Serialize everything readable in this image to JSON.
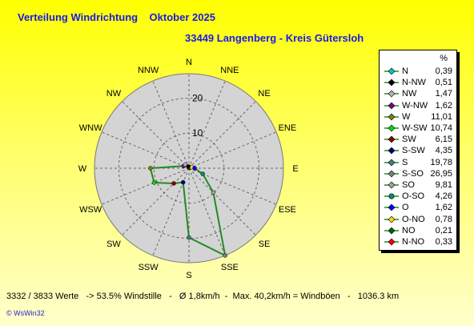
{
  "header": {
    "title": "Verteilung Windrichtung    Oktober 2025",
    "subtitle": "33449 Langenberg - Kreis Gütersloh"
  },
  "chart_data": {
    "type": "radar",
    "directions": [
      "N",
      "NNE",
      "NE",
      "ENE",
      "E",
      "ESE",
      "SE",
      "SSE",
      "S",
      "SSW",
      "SW",
      "WSW",
      "W",
      "WNW",
      "NW",
      "NNW"
    ],
    "values": [
      0.39,
      0.33,
      0.21,
      0.78,
      1.62,
      4.26,
      9.81,
      26.95,
      19.78,
      4.35,
      6.15,
      10.74,
      11.01,
      1.62,
      1.47,
      0.51
    ],
    "r_ticks": [
      "10",
      "20"
    ],
    "r_max": 26.95,
    "grid": true,
    "line_color": "#228b22",
    "ring_fill": "#d4d4d4"
  },
  "legend": {
    "unit": "%",
    "items": [
      {
        "dir": "N",
        "value": "0,39",
        "color": "#00c8c8",
        "marker": "diamond"
      },
      {
        "dir": "N-NW",
        "value": "0,51",
        "color": "#000000",
        "marker": "diamond"
      },
      {
        "dir": "NW",
        "value": "1,47",
        "color": "#b4b4b4",
        "marker": "diamond"
      },
      {
        "dir": "W-NW",
        "value": "1,62",
        "color": "#800080",
        "marker": "diamond"
      },
      {
        "dir": "W",
        "value": "11,01",
        "color": "#808000",
        "marker": "diamond"
      },
      {
        "dir": "W-SW",
        "value": "10,74",
        "color": "#00e000",
        "marker": "diamond"
      },
      {
        "dir": "SW",
        "value": "6,15",
        "color": "#8b0000",
        "marker": "diamond"
      },
      {
        "dir": "S-SW",
        "value": "4,35",
        "color": "#000080",
        "marker": "diamond"
      },
      {
        "dir": "S",
        "value": "19,78",
        "color": "#408080",
        "marker": "diamond"
      },
      {
        "dir": "S-SO",
        "value": "26,95",
        "color": "#808080",
        "marker": "diamond"
      },
      {
        "dir": "SO",
        "value": "9,81",
        "color": "#a0a0a0",
        "marker": "diamond"
      },
      {
        "dir": "O-SO",
        "value": "4,26",
        "color": "#009060",
        "marker": "circle"
      },
      {
        "dir": "O",
        "value": "1,62",
        "color": "#0000ff",
        "marker": "diamond"
      },
      {
        "dir": "O-NO",
        "value": "0,78",
        "color": "#ffd700",
        "marker": "diamond"
      },
      {
        "dir": "NO",
        "value": "0,21",
        "color": "#006400",
        "marker": "diamond"
      },
      {
        "dir": "N-NO",
        "value": "0,33",
        "color": "#ff0000",
        "marker": "diamond"
      }
    ]
  },
  "footer": {
    "stats": "3332 / 3833 Werte   -> 53.5% Windstille   -   Ø 1,8km/h  -  Max. 40,2km/h = Windböen   -   1036.3 km",
    "credit": "© WsWin32"
  }
}
